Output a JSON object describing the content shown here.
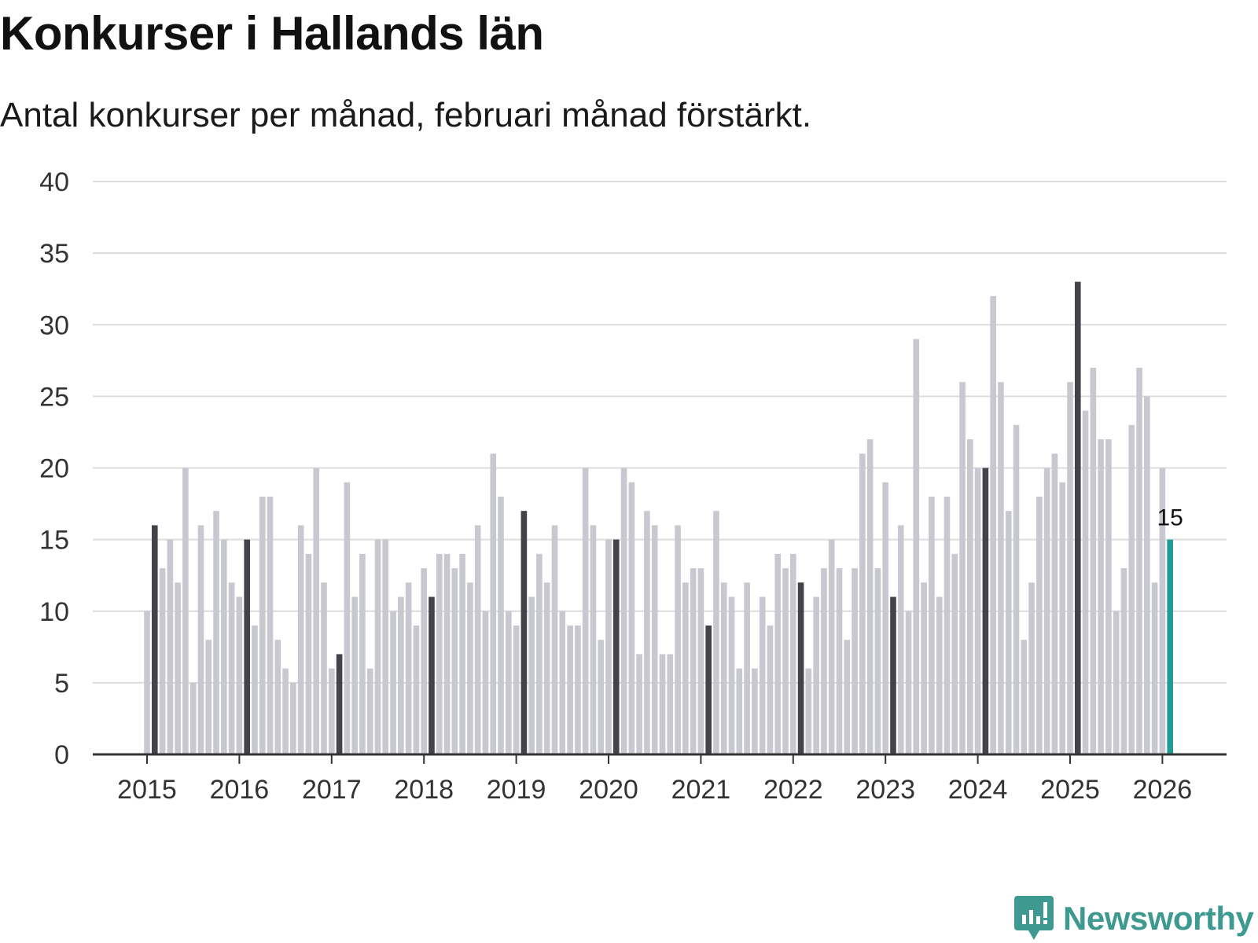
{
  "chart_data": {
    "type": "bar",
    "title": "Konkurser i Hallands län",
    "subtitle": "Antal konkurser per månad, februari månad förstärkt.",
    "xlabel": "",
    "ylabel": "",
    "ylim": [
      0,
      40
    ],
    "yticks": [
      "0",
      "5",
      "10",
      "15",
      "20",
      "25",
      "30",
      "35",
      "40"
    ],
    "ytick_values": [
      0,
      5,
      10,
      15,
      20,
      25,
      30,
      35,
      40
    ],
    "year_labels": [
      "2015",
      "2016",
      "2017",
      "2018",
      "2019",
      "2020",
      "2021",
      "2022",
      "2023",
      "2024",
      "2025",
      "2026"
    ],
    "start": "2015-01",
    "highlight_month": "February",
    "values": [
      10,
      16,
      13,
      15,
      12,
      20,
      5,
      16,
      8,
      17,
      15,
      12,
      11,
      15,
      9,
      18,
      18,
      8,
      6,
      5,
      16,
      14,
      20,
      12,
      6,
      7,
      19,
      11,
      14,
      6,
      15,
      15,
      10,
      11,
      12,
      9,
      13,
      11,
      14,
      14,
      13,
      14,
      12,
      16,
      10,
      21,
      18,
      10,
      9,
      17,
      11,
      14,
      12,
      16,
      10,
      9,
      9,
      20,
      16,
      8,
      15,
      15,
      20,
      19,
      7,
      17,
      16,
      7,
      7,
      16,
      12,
      13,
      13,
      9,
      17,
      12,
      11,
      6,
      12,
      6,
      11,
      9,
      14,
      13,
      14,
      12,
      6,
      11,
      13,
      15,
      13,
      8,
      13,
      21,
      22,
      13,
      19,
      11,
      16,
      10,
      29,
      12,
      18,
      11,
      18,
      14,
      26,
      22,
      20,
      20,
      32,
      26,
      17,
      23,
      8,
      12,
      18,
      20,
      21,
      19,
      26,
      33,
      24,
      27,
      22,
      22,
      10,
      13,
      23,
      27,
      25,
      12,
      20,
      15
    ],
    "last_value_label": "15",
    "colors": {
      "bar": "#c8c8d0",
      "february": "#44434c",
      "latest": "#1f9c94",
      "grid": "#dcdcdc",
      "axis": "#333333"
    }
  },
  "brand": {
    "name": "Newsworthy",
    "color": "#3e9a90",
    "icon": "newsworthy-logo-icon"
  }
}
